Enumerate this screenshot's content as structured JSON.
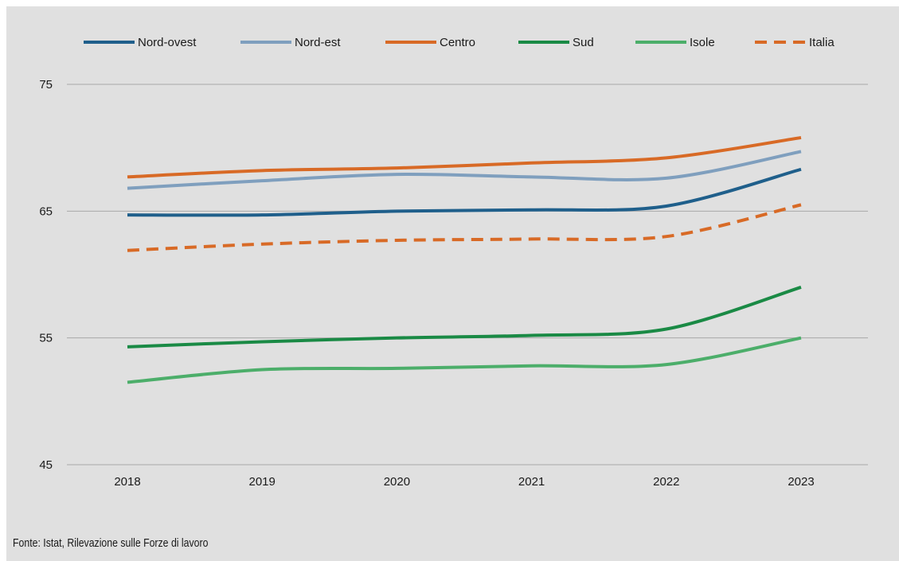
{
  "chart_data": {
    "type": "line",
    "categories": [
      "2018",
      "2019",
      "2020",
      "2021",
      "2022",
      "2023"
    ],
    "ylim": [
      45,
      75
    ],
    "yticks": [
      45,
      55,
      65,
      75
    ],
    "grid": true,
    "legend_position": "top",
    "series": [
      {
        "name": "Nord-ovest",
        "color": "#1f5f8b",
        "dash": false,
        "values": [
          64.7,
          64.7,
          65.0,
          65.1,
          65.4,
          68.3
        ]
      },
      {
        "name": "Nord-est",
        "color": "#7f9fbe",
        "dash": false,
        "values": [
          66.8,
          67.4,
          67.9,
          67.7,
          67.6,
          69.7
        ]
      },
      {
        "name": "Centro",
        "color": "#d86a26",
        "dash": false,
        "values": [
          67.7,
          68.2,
          68.4,
          68.8,
          69.2,
          70.8
        ]
      },
      {
        "name": "Sud",
        "color": "#1a8a45",
        "dash": false,
        "values": [
          54.3,
          54.7,
          55.0,
          55.2,
          55.7,
          59.0
        ]
      },
      {
        "name": "Isole",
        "color": "#4cae6a",
        "dash": false,
        "values": [
          51.5,
          52.5,
          52.6,
          52.8,
          52.9,
          55.0
        ]
      },
      {
        "name": "Italia",
        "color": "#d86a26",
        "dash": true,
        "values": [
          61.9,
          62.4,
          62.7,
          62.8,
          63.0,
          65.5
        ]
      }
    ]
  },
  "source_note": "Fonte: Istat, Rilevazione sulle Forze di lavoro"
}
